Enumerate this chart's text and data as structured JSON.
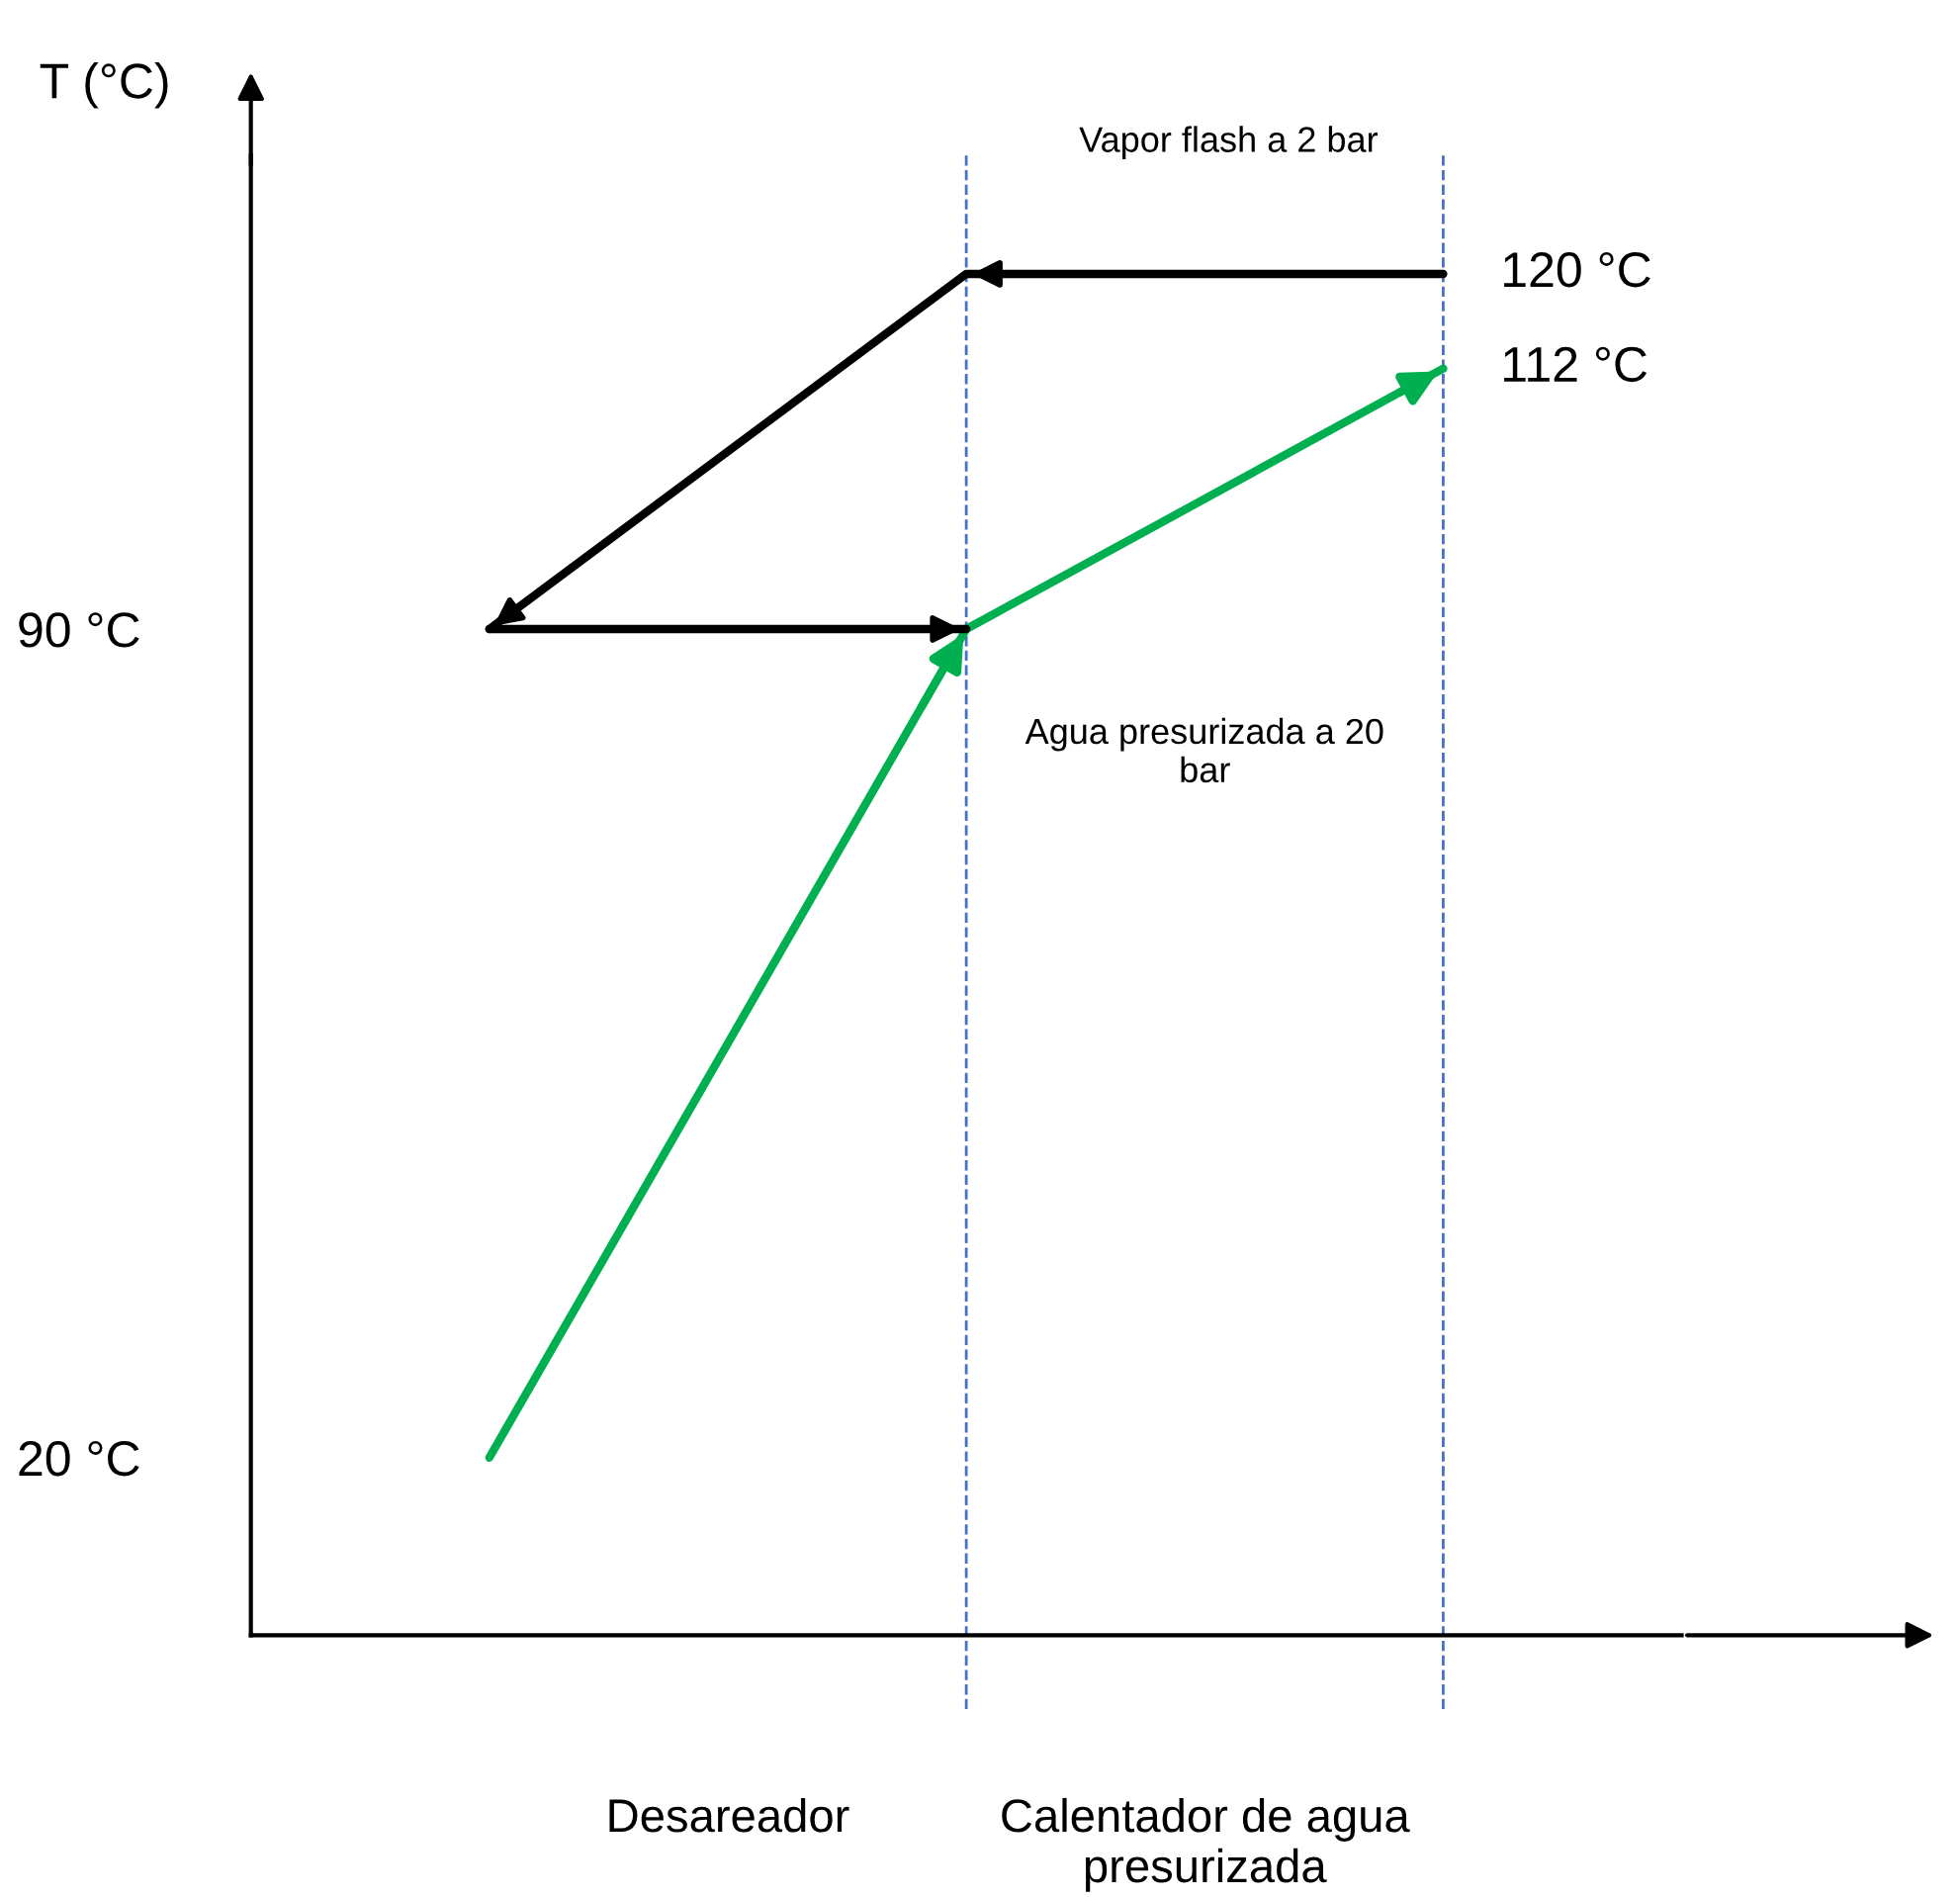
{
  "chart_data": {
    "type": "line",
    "ylabel": "T (°C)",
    "categories": [
      null,
      null,
      null
    ],
    "series": [
      {
        "color": "#00b050",
        "values": [
          20,
          90,
          112
        ]
      },
      {
        "color": "#000000",
        "values": [
          90,
          120,
          120
        ]
      },
      {
        "color": "#000000",
        "values": [
          90,
          90,
          null
        ]
      }
    ],
    "ylim": [
      5,
      130
    ],
    "yticks": [
      {
        "value": 20,
        "label": "20 °C"
      },
      {
        "value": 90,
        "label": "90 °C"
      }
    ],
    "tick_labels": "y",
    "grid": false,
    "legend": false,
    "line_style": "solid",
    "annotations": [
      "120 °C",
      "112 °C",
      "Vapor flash a 2 bar",
      "Agua presurizada a 20 bar",
      "Desareador",
      "Calentador de agua presurizada"
    ]
  }
}
